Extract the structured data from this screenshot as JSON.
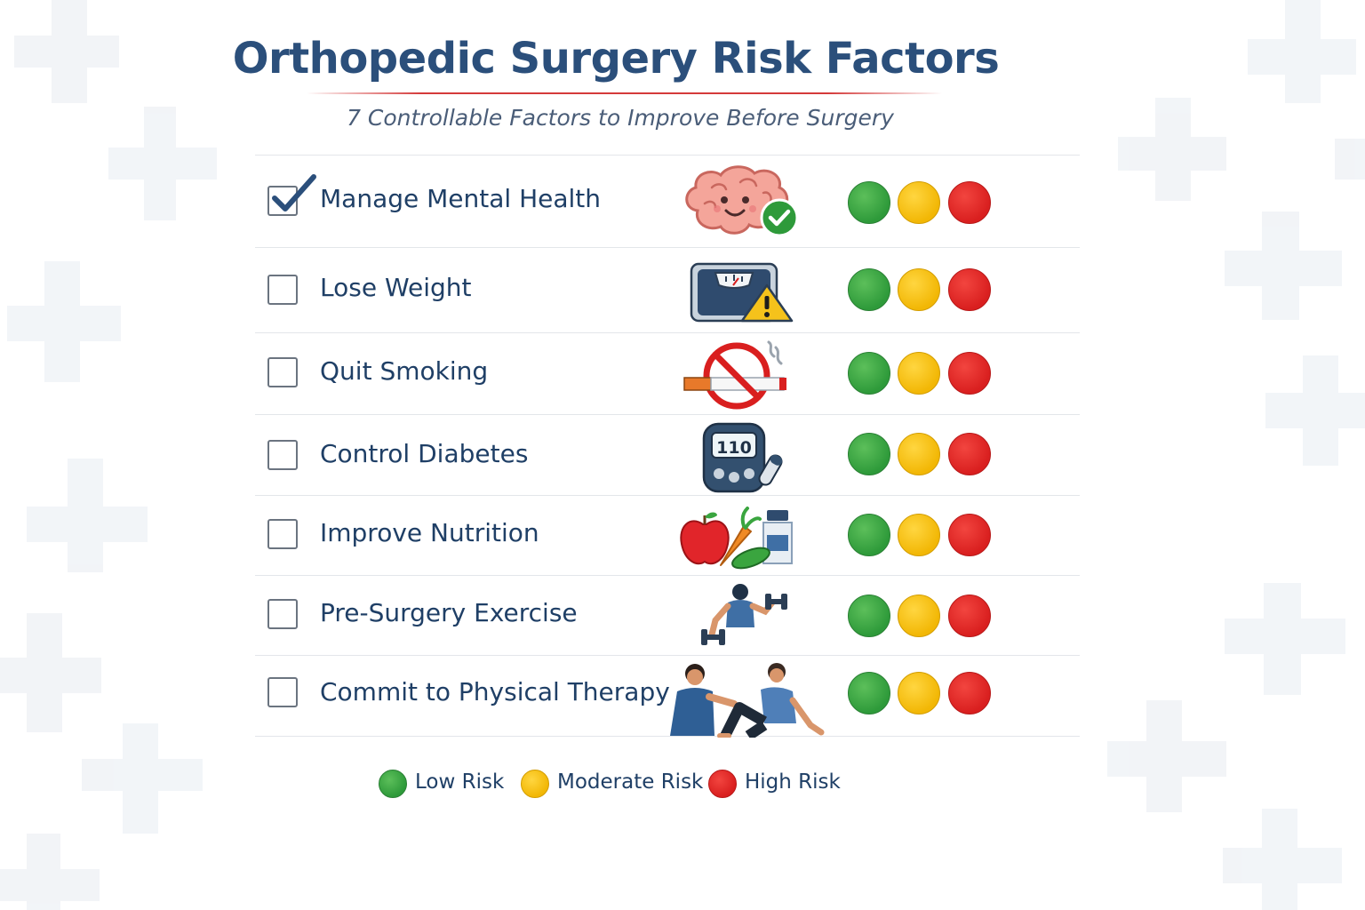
{
  "header": {
    "title": "Orthopedic Surgery Risk Factors",
    "subtitle": "7 Controllable Factors to Improve Before Surgery"
  },
  "factors": [
    {
      "label": "Manage Mental Health",
      "checked": true,
      "icon": "brain-icon"
    },
    {
      "label": "Lose Weight",
      "checked": false,
      "icon": "scale-warning-icon"
    },
    {
      "label": "Quit Smoking",
      "checked": false,
      "icon": "no-smoking-icon"
    },
    {
      "label": "Control Diabetes",
      "checked": false,
      "icon": "glucose-meter-icon",
      "meter_reading": "110"
    },
    {
      "label": "Improve Nutrition",
      "checked": false,
      "icon": "nutrition-icon"
    },
    {
      "label": "Pre-Surgery Exercise",
      "checked": false,
      "icon": "exercise-icon"
    },
    {
      "label": "Commit to Physical Therapy",
      "checked": false,
      "icon": "physical-therapy-icon"
    }
  ],
  "legend": {
    "low": "Low Risk",
    "moderate": "Moderate Risk",
    "high": "High Risk"
  },
  "colors": {
    "low": "#2e9a3a",
    "moderate": "#f2b705",
    "high": "#d91f1f",
    "title": "#2b4f7b",
    "accent_rule": "#d43a3a"
  }
}
